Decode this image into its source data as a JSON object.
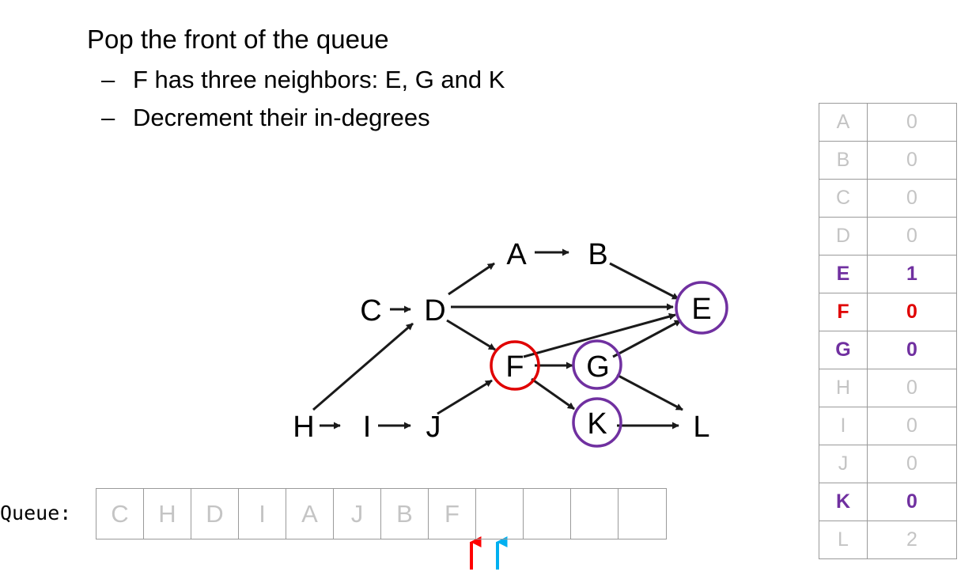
{
  "slide": {
    "heading": "Pop the front of the queue",
    "bullets": [
      "F has three neighbors:  E, G and K",
      "Decrement their in-degrees"
    ]
  },
  "graph": {
    "nodes": {
      "A": "A",
      "B": "B",
      "C": "C",
      "D": "D",
      "E": "E",
      "F": "F",
      "G": "G",
      "H": "H",
      "I": "I",
      "J": "J",
      "K": "K",
      "L": "L"
    },
    "circle_colors": {
      "current": "#e00000",
      "neighbor": "#7030a0"
    }
  },
  "queue": {
    "label": "Queue:",
    "cells": [
      "C",
      "H",
      "D",
      "I",
      "A",
      "J",
      "B",
      "F",
      "",
      "",
      "",
      ""
    ],
    "pointer_colors": {
      "front": "#ff0000",
      "back": "#00b0f0"
    }
  },
  "in_degrees": [
    {
      "vertex": "A",
      "degree": "0",
      "style": "gray"
    },
    {
      "vertex": "B",
      "degree": "0",
      "style": "gray"
    },
    {
      "vertex": "C",
      "degree": "0",
      "style": "gray"
    },
    {
      "vertex": "D",
      "degree": "0",
      "style": "gray"
    },
    {
      "vertex": "E",
      "degree": "1",
      "style": "purple"
    },
    {
      "vertex": "F",
      "degree": "0",
      "style": "red"
    },
    {
      "vertex": "G",
      "degree": "0",
      "style": "purple"
    },
    {
      "vertex": "H",
      "degree": "0",
      "style": "gray"
    },
    {
      "vertex": "I",
      "degree": "0",
      "style": "gray"
    },
    {
      "vertex": "J",
      "degree": "0",
      "style": "gray"
    },
    {
      "vertex": "K",
      "degree": "0",
      "style": "purple"
    },
    {
      "vertex": "L",
      "degree": "2",
      "style": "gray"
    }
  ]
}
